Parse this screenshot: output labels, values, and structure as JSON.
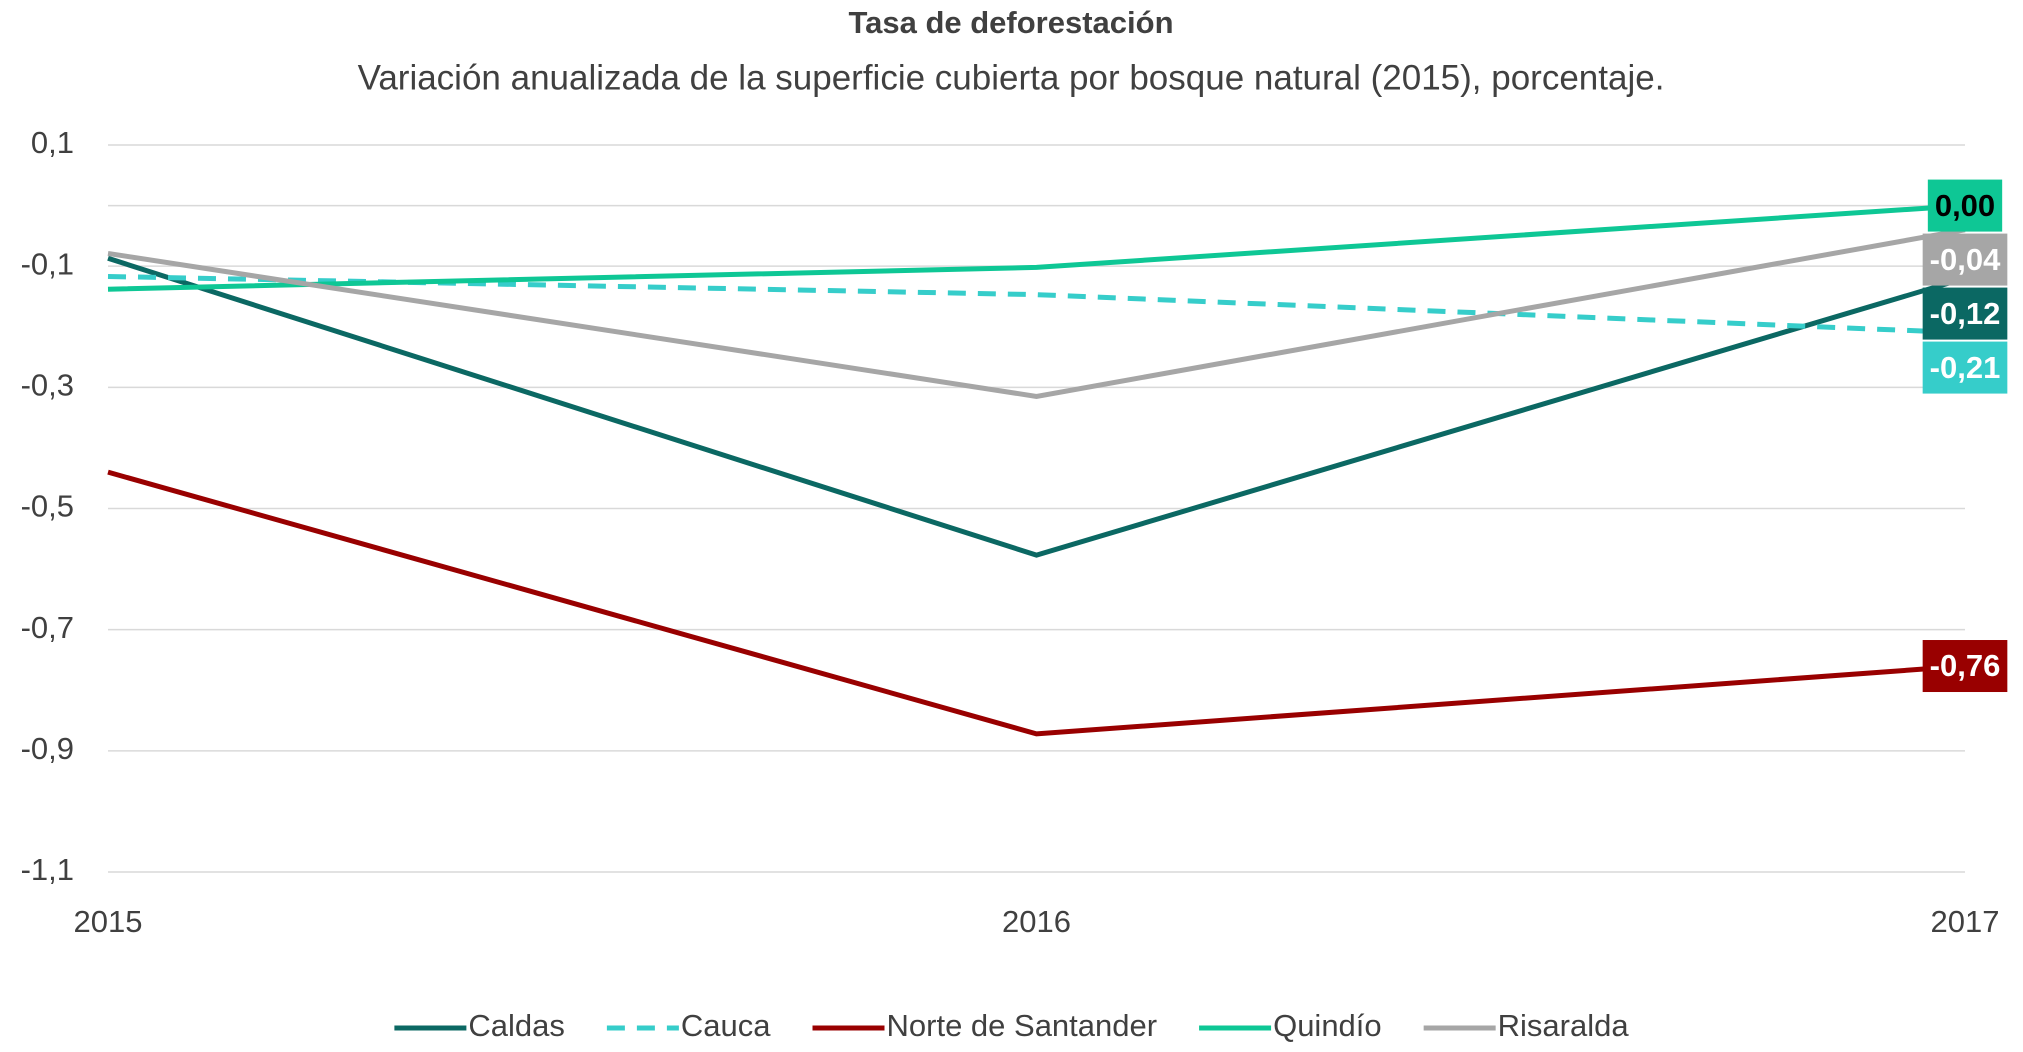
{
  "chart_data": {
    "type": "line",
    "title": "Tasa de deforestación",
    "subtitle": "Variación anualizada de la superficie cubierta por bosque natural (2015), porcentaje.",
    "categories": [
      "2015",
      "2016",
      "2017"
    ],
    "series": [
      {
        "name": "Caldas",
        "color": "#0b6863",
        "values": [
          -0.087,
          -0.577,
          -0.12
        ],
        "value_labels": [
          null,
          null,
          "-0,12"
        ]
      },
      {
        "name": "Cauca",
        "color": "#36cdca",
        "dash": true,
        "values": [
          -0.117,
          -0.147,
          -0.21
        ],
        "value_labels": [
          null,
          null,
          "-0,21"
        ]
      },
      {
        "name": "Norte de Santander",
        "color": "#990000",
        "values": [
          -0.44,
          -0.872,
          -0.76
        ],
        "value_labels": [
          null,
          null,
          "-0,76"
        ]
      },
      {
        "name": "Quindío",
        "color": "#0ec795",
        "values": [
          -0.138,
          -0.102,
          0.0
        ],
        "value_labels": [
          null,
          null,
          "0,00"
        ]
      },
      {
        "name": "Risaralda",
        "color": "#a6a6a6",
        "values": [
          -0.079,
          -0.315,
          -0.04
        ],
        "value_labels": [
          null,
          null,
          "-0,04"
        ]
      }
    ],
    "ylim": [
      -1.1,
      0.1
    ],
    "yticks": [
      {
        "value": 0.1,
        "label": "0,1"
      },
      {
        "value": -0.1,
        "label": "-0,1"
      },
      {
        "value": -0.3,
        "label": "-0,3"
      },
      {
        "value": -0.5,
        "label": "-0,5"
      },
      {
        "value": -0.7,
        "label": "-0,7"
      },
      {
        "value": -0.9,
        "label": "-0,9"
      },
      {
        "value": -1.1,
        "label": "-1,1"
      }
    ],
    "grid": true,
    "legend": "bottom"
  }
}
